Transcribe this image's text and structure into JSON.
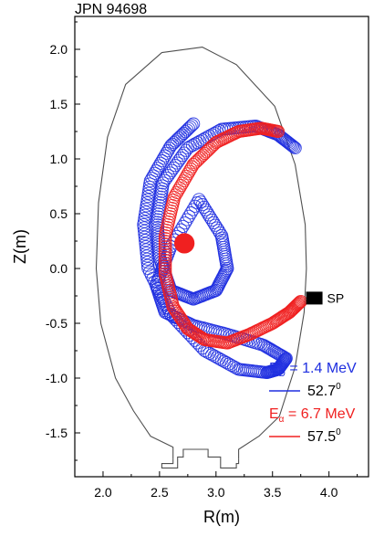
{
  "chart_data": {
    "type": "line",
    "title": "JPN 94698",
    "xlabel": "R(m)",
    "ylabel": "Z(m)",
    "xlim": [
      1.75,
      4.35
    ],
    "ylim": [
      -1.9,
      2.3
    ],
    "xticks": [
      "2.0",
      "2.5",
      "3.0",
      "3.5",
      "4.0"
    ],
    "yticks": [
      "2.0",
      "1.5",
      "1.0",
      "0.5",
      "0.0",
      "-0.5",
      "-1.0",
      "-1.5"
    ],
    "grid": false,
    "detector": {
      "label": "SP",
      "R": 3.87,
      "Z": -0.27
    },
    "colors": {
      "deuteron": "#1f2fe0",
      "alpha": "#f02020",
      "vessel": "#505050"
    },
    "legend": {
      "position": "bottom-right",
      "entries": [
        {
          "energy_label": "E",
          "energy_sub": "D",
          "energy_value": " = 1.4 MeV",
          "angle": "52.7",
          "deg": "0",
          "color": "#1f2fe0"
        },
        {
          "energy_label": "E",
          "energy_sub": "α",
          "energy_value": " = 6.7 MeV",
          "angle": "57.5",
          "deg": "0",
          "color": "#f02020"
        }
      ]
    },
    "vessel_outline": [
      [
        2.62,
        -1.74
      ],
      [
        2.62,
        -1.63
      ],
      [
        2.42,
        -1.53
      ],
      [
        2.27,
        -1.3
      ],
      [
        2.11,
        -1.0
      ],
      [
        1.98,
        -0.5
      ],
      [
        1.94,
        0.0
      ],
      [
        1.96,
        0.6
      ],
      [
        2.04,
        1.2
      ],
      [
        2.2,
        1.68
      ],
      [
        2.52,
        1.97
      ],
      [
        2.88,
        2.02
      ],
      [
        3.18,
        1.86
      ],
      [
        3.52,
        1.48
      ],
      [
        3.7,
        0.95
      ],
      [
        3.79,
        0.4
      ],
      [
        3.8,
        0.0
      ],
      [
        3.78,
        -0.4
      ],
      [
        3.7,
        -0.9
      ],
      [
        3.56,
        -1.35
      ],
      [
        3.38,
        -1.53
      ],
      [
        3.2,
        -1.65
      ],
      [
        3.2,
        -1.74
      ]
    ],
    "divertor": [
      [
        2.62,
        -1.74
      ],
      [
        2.62,
        -1.78
      ],
      [
        2.52,
        -1.78
      ],
      [
        2.52,
        -1.82
      ],
      [
        2.66,
        -1.82
      ],
      [
        2.66,
        -1.72
      ],
      [
        2.71,
        -1.72
      ],
      [
        2.71,
        -1.65
      ],
      [
        2.93,
        -1.65
      ],
      [
        2.93,
        -1.72
      ],
      [
        3.04,
        -1.72
      ],
      [
        3.04,
        -1.82
      ],
      [
        3.18,
        -1.82
      ],
      [
        3.18,
        -1.78
      ],
      [
        3.2,
        -1.78
      ],
      [
        3.2,
        -1.74
      ]
    ],
    "series": [
      {
        "name": "E_D = 1.4 MeV (52.7°)",
        "color": "#1f2fe0",
        "x": [
          2.8,
          2.6,
          2.42,
          2.36,
          2.4,
          2.6,
          2.9,
          3.2,
          3.45,
          3.55,
          3.62,
          3.42,
          3.1,
          2.8,
          2.55,
          2.47,
          2.6,
          2.85,
          3.05,
          3.1,
          3.0,
          2.8,
          2.6,
          2.5,
          2.48,
          2.53,
          2.75,
          3.05,
          3.35,
          3.55,
          3.7
        ],
        "y": [
          1.32,
          1.12,
          0.8,
          0.4,
          0.0,
          -0.42,
          -0.75,
          -0.92,
          -0.95,
          -0.92,
          -0.82,
          -0.7,
          -0.6,
          -0.52,
          -0.4,
          -0.15,
          0.2,
          0.63,
          0.3,
          0.0,
          -0.2,
          -0.28,
          -0.2,
          0.1,
          0.42,
          0.78,
          1.1,
          1.27,
          1.3,
          1.22,
          1.1
        ]
      },
      {
        "name": "E_α = 6.7 MeV (57.5°)",
        "color": "#f02020",
        "x": [
          3.55,
          3.4,
          3.2,
          3.0,
          2.8,
          2.63,
          2.55,
          2.55,
          2.62,
          2.75,
          2.9,
          3.1,
          3.3,
          3.5,
          3.65,
          3.75
        ],
        "y": [
          1.25,
          1.28,
          1.25,
          1.15,
          0.95,
          0.65,
          0.3,
          -0.05,
          -0.35,
          -0.55,
          -0.65,
          -0.68,
          -0.6,
          -0.5,
          -0.4,
          -0.3
        ]
      }
    ],
    "orbit_tube_halfwidth": 0.055,
    "start_blob": {
      "R": 2.72,
      "Z": 0.23,
      "r": 0.09
    }
  }
}
